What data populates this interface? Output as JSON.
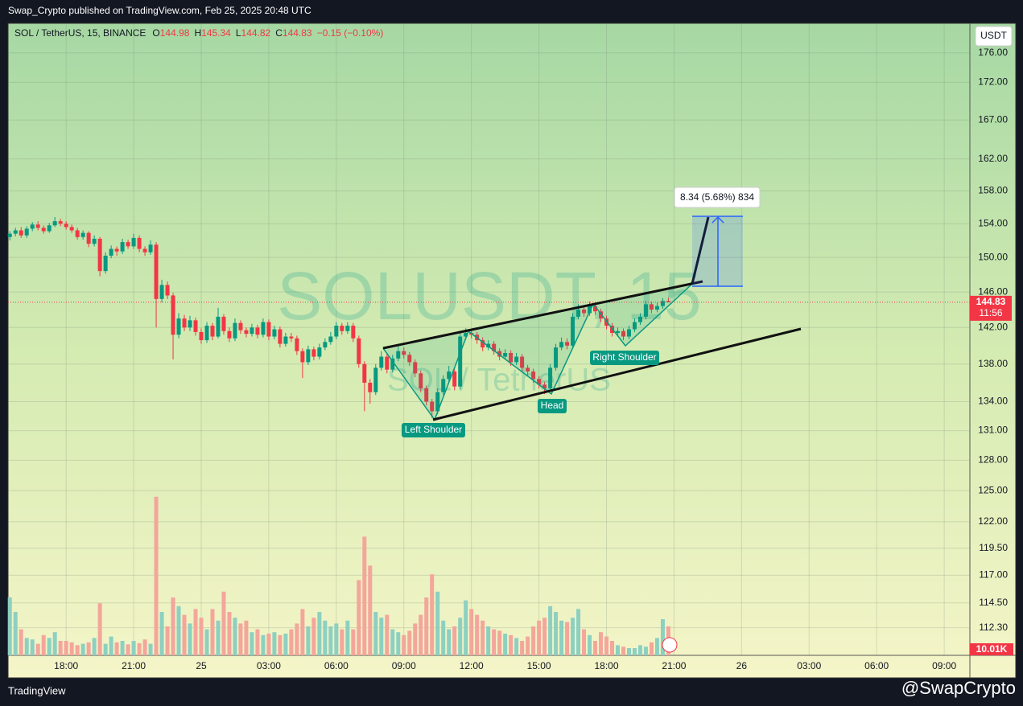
{
  "header": {
    "title": "Swap_Crypto published on TradingView.com, Feb 25, 2025 20:48 UTC"
  },
  "footer": {
    "brand": "TradingView",
    "handle": "@SwapCrypto"
  },
  "chart_data": {
    "type": "candlestick",
    "symbol": "SOL / TetherUS, 15, BINANCE",
    "ohlc_keys": [
      "O",
      "H",
      "L",
      "C"
    ],
    "change": "−0.15 (−0.10%)",
    "currency": "USDT",
    "countdown": "11:56",
    "watermark": {
      "symbol": "SOLUSDT, 15",
      "name": "SOL / TetherUS"
    },
    "annotations": [
      "Left Shoulder",
      "Head",
      "Right Shoulder"
    ],
    "measure": "8.34 (5.68%) 834",
    "log_scale": true,
    "grid": true,
    "up_color": "#089981",
    "down_color": "#f23645",
    "volume_up_color": "#8dd0c1",
    "volume_down_color": "#f4a69b",
    "xlim": [
      15.42,
      58.14
    ],
    "xticks": [
      {
        "value": 18,
        "label": "18:00"
      },
      {
        "value": 21,
        "label": "21:00"
      },
      {
        "value": 24,
        "label": "25"
      },
      {
        "value": 27,
        "label": "03:00"
      },
      {
        "value": 30,
        "label": "06:00"
      },
      {
        "value": 33,
        "label": "09:00"
      },
      {
        "value": 36,
        "label": "12:00"
      },
      {
        "value": 39,
        "label": "15:00"
      },
      {
        "value": 42,
        "label": "18:00"
      },
      {
        "value": 45,
        "label": "21:00"
      },
      {
        "value": 48,
        "label": "26"
      },
      {
        "value": 51,
        "label": "03:00"
      },
      {
        "value": 54,
        "label": "06:00"
      },
      {
        "value": 57,
        "label": "09:00"
      }
    ],
    "ylim": [
      109.9,
      180.0
    ],
    "yticks": [
      {
        "value": 176,
        "label": "176.00"
      },
      {
        "value": 172,
        "label": "172.00"
      },
      {
        "value": 167,
        "label": "167.00"
      },
      {
        "value": 162,
        "label": "162.00"
      },
      {
        "value": 158,
        "label": "158.00"
      },
      {
        "value": 154,
        "label": "154.00"
      },
      {
        "value": 150,
        "label": "150.00"
      },
      {
        "value": 146,
        "label": "146.00"
      },
      {
        "value": 142,
        "label": "142.00"
      },
      {
        "value": 138,
        "label": "138.00"
      },
      {
        "value": 134,
        "label": "134.00"
      },
      {
        "value": 131,
        "label": "131.00"
      },
      {
        "value": 128,
        "label": "128.00"
      },
      {
        "value": 125,
        "label": "125.00"
      },
      {
        "value": 122,
        "label": "122.00"
      },
      {
        "value": 119.5,
        "label": "119.50"
      },
      {
        "value": 117,
        "label": "117.00"
      },
      {
        "value": 114.5,
        "label": "114.50"
      },
      {
        "value": 112.3,
        "label": "112.30"
      }
    ],
    "x": [
      15.5,
      15.75,
      16,
      16.25,
      16.5,
      16.75,
      17,
      17.25,
      17.5,
      17.75,
      18,
      18.25,
      18.5,
      18.75,
      19,
      19.25,
      19.5,
      19.75,
      20,
      20.25,
      20.5,
      20.75,
      21,
      21.25,
      21.5,
      21.75,
      22,
      22.25,
      22.5,
      22.75,
      23,
      23.25,
      23.5,
      23.75,
      24,
      24.25,
      24.5,
      24.75,
      25,
      25.25,
      25.5,
      25.75,
      26,
      26.25,
      26.5,
      26.75,
      27,
      27.25,
      27.5,
      27.75,
      28,
      28.25,
      28.5,
      28.75,
      29,
      29.25,
      29.5,
      29.75,
      30,
      30.25,
      30.5,
      30.75,
      31,
      31.25,
      31.5,
      31.75,
      32,
      32.25,
      32.5,
      32.75,
      33,
      33.25,
      33.5,
      33.75,
      34,
      34.25,
      34.5,
      34.75,
      35,
      35.25,
      35.5,
      35.75,
      36,
      36.25,
      36.5,
      36.75,
      37,
      37.25,
      37.5,
      37.75,
      38,
      38.25,
      38.5,
      38.75,
      39,
      39.25,
      39.5,
      39.75,
      40,
      40.25,
      40.5,
      40.75,
      41,
      41.25,
      41.5,
      41.75,
      42,
      42.25,
      42.5,
      42.75,
      43,
      43.25,
      43.5,
      43.75,
      44,
      44.25,
      44.5,
      44.75
    ],
    "open": [
      152.4,
      152.8,
      153.2,
      152.6,
      153.4,
      153.9,
      153.5,
      153.1,
      153.8,
      154.3,
      154.0,
      153.6,
      153.2,
      152.4,
      152.9,
      151.6,
      152.2,
      148.4,
      150.2,
      151.0,
      150.7,
      151.8,
      151.3,
      152.3,
      151.0,
      150.6,
      151.5,
      145.2,
      146.8,
      145.6,
      141.2,
      143.0,
      142.0,
      142.8,
      141.5,
      140.6,
      142.2,
      141.0,
      143.2,
      141.6,
      140.8,
      142.5,
      141.7,
      141.3,
      142.0,
      141.2,
      142.6,
      141.0,
      141.8,
      140.2,
      141.0,
      140.8,
      139.4,
      138.2,
      139.6,
      138.8,
      139.8,
      140.4,
      141.0,
      142.2,
      141.6,
      142.2,
      140.8,
      138.0,
      136.0,
      135.0,
      137.6,
      138.8,
      137.4,
      138.6,
      139.4,
      139.0,
      138.2,
      137.0,
      135.4,
      134.0,
      133.0,
      135.0,
      136.4,
      137.2,
      135.6,
      141.0,
      141.4,
      141.2,
      140.6,
      139.8,
      140.2,
      139.4,
      138.8,
      139.2,
      138.2,
      138.8,
      137.6,
      137.2,
      136.4,
      135.8,
      135.4,
      137.6,
      139.8,
      140.4,
      140.0,
      143.2,
      144.0,
      143.6,
      144.4,
      143.8,
      143.0,
      142.2,
      141.4,
      141.6,
      141.0,
      141.8,
      142.6,
      143.2,
      144.6,
      144.0,
      144.4,
      144.98
    ],
    "high": [
      153.1,
      153.5,
      153.6,
      153.7,
      154.2,
      154.3,
      153.8,
      154.1,
      154.8,
      154.6,
      154.3,
      153.9,
      153.5,
      153.2,
      153.1,
      152.6,
      152.4,
      150.6,
      151.4,
      151.3,
      152.2,
      152.1,
      152.8,
      152.6,
      151.3,
      152.0,
      151.8,
      147.4,
      147.2,
      145.9,
      143.6,
      143.4,
      143.3,
      143.1,
      141.9,
      142.6,
      142.5,
      144.2,
      143.5,
      142.0,
      143.0,
      142.8,
      142.0,
      142.4,
      142.3,
      143.0,
      142.9,
      142.2,
      142.1,
      141.4,
      141.4,
      141.1,
      139.7,
      140.0,
      139.9,
      140.2,
      140.8,
      141.5,
      142.6,
      142.5,
      142.6,
      142.5,
      141.1,
      138.3,
      136.4,
      138.0,
      139.4,
      139.1,
      139.0,
      139.9,
      139.8,
      139.3,
      138.5,
      137.3,
      135.7,
      134.3,
      135.4,
      136.8,
      137.8,
      137.5,
      141.4,
      141.9,
      141.7,
      141.5,
      140.9,
      140.6,
      140.5,
      139.7,
      139.6,
      139.5,
      139.2,
      139.1,
      137.9,
      137.5,
      136.7,
      136.1,
      138.0,
      140.2,
      140.9,
      140.8,
      143.6,
      144.6,
      144.4,
      144.9,
      144.7,
      144.1,
      143.3,
      142.5,
      142.0,
      141.9,
      142.2,
      143.0,
      143.6,
      145.0,
      144.9,
      144.8,
      145.3,
      145.34
    ],
    "low": [
      152.0,
      152.5,
      152.3,
      152.3,
      153.1,
      153.2,
      152.8,
      152.9,
      153.6,
      153.7,
      153.3,
      152.9,
      152.1,
      152.1,
      151.2,
      151.3,
      147.8,
      148.1,
      149.9,
      150.2,
      150.4,
      151.0,
      151.0,
      150.6,
      150.2,
      150.3,
      142.0,
      144.8,
      145.2,
      138.5,
      140.8,
      141.6,
      141.6,
      141.1,
      140.2,
      140.3,
      140.6,
      140.8,
      141.2,
      140.4,
      140.5,
      141.3,
      140.9,
      141.0,
      140.8,
      140.9,
      140.6,
      140.7,
      139.8,
      139.9,
      140.4,
      139.0,
      136.5,
      137.9,
      138.4,
      138.5,
      139.5,
      140.1,
      140.7,
      141.2,
      141.3,
      140.4,
      137.6,
      133.0,
      133.8,
      134.7,
      137.3,
      137.0,
      137.1,
      138.3,
      138.6,
      137.8,
      136.6,
      135.0,
      133.6,
      132.3,
      132.7,
      134.7,
      136.1,
      135.2,
      135.3,
      140.7,
      140.8,
      140.2,
      139.4,
      139.5,
      139.0,
      138.4,
      138.5,
      137.8,
      137.9,
      137.2,
      136.8,
      136.0,
      135.4,
      134.8,
      135.1,
      137.3,
      139.5,
      139.6,
      139.7,
      142.9,
      143.2,
      143.3,
      143.4,
      142.6,
      141.8,
      141.0,
      141.1,
      140.6,
      140.7,
      141.5,
      142.3,
      142.9,
      143.6,
      143.7,
      144.1,
      144.82
    ],
    "close": [
      152.8,
      153.2,
      152.6,
      153.4,
      153.9,
      153.5,
      153.1,
      153.8,
      154.3,
      154.0,
      153.6,
      153.2,
      152.4,
      152.9,
      151.6,
      152.2,
      148.4,
      150.2,
      151.0,
      150.7,
      151.8,
      151.3,
      152.3,
      151.0,
      150.6,
      151.5,
      145.2,
      146.8,
      145.6,
      141.2,
      143.0,
      142.0,
      142.8,
      141.5,
      140.6,
      142.2,
      141.0,
      143.2,
      141.6,
      140.8,
      142.5,
      141.7,
      141.3,
      142.0,
      141.2,
      142.6,
      141.0,
      141.8,
      140.2,
      141.0,
      140.8,
      139.4,
      138.2,
      139.6,
      138.8,
      139.8,
      140.4,
      141.0,
      142.2,
      141.6,
      142.2,
      140.8,
      138.0,
      136.0,
      135.0,
      137.6,
      138.8,
      137.4,
      138.6,
      139.4,
      139.0,
      138.2,
      137.0,
      135.4,
      134.0,
      133.0,
      135.0,
      136.4,
      137.2,
      135.6,
      141.0,
      141.4,
      141.2,
      140.6,
      139.8,
      140.2,
      139.4,
      138.8,
      139.2,
      138.2,
      138.8,
      137.6,
      137.2,
      136.4,
      135.8,
      135.4,
      137.6,
      139.8,
      140.4,
      140.0,
      143.2,
      144.0,
      143.6,
      144.4,
      143.8,
      143.0,
      142.2,
      141.4,
      141.6,
      141.0,
      141.8,
      142.6,
      143.2,
      144.6,
      144.0,
      144.4,
      144.98,
      144.83
    ],
    "volume": {
      "values": [
        20000,
        15000,
        9000,
        6000,
        5500,
        4000,
        7000,
        6000,
        8000,
        5000,
        5000,
        4500,
        3500,
        4000,
        4500,
        6000,
        18000,
        4000,
        6500,
        4500,
        5000,
        3800,
        5000,
        4200,
        5500,
        4000,
        54800,
        15000,
        10000,
        20000,
        17000,
        14000,
        11000,
        16000,
        13000,
        9000,
        16000,
        12000,
        22000,
        15000,
        13000,
        11000,
        12000,
        8000,
        9000,
        7000,
        7500,
        8000,
        7000,
        7500,
        9000,
        11000,
        16000,
        10000,
        13000,
        15000,
        12000,
        10000,
        11000,
        9000,
        12000,
        9000,
        26000,
        41000,
        31000,
        15000,
        13000,
        14000,
        9000,
        8000,
        7000,
        8500,
        11000,
        14000,
        20000,
        28000,
        22000,
        12000,
        9000,
        10000,
        13000,
        19000,
        16000,
        14000,
        12000,
        10000,
        9000,
        8500,
        7500,
        7000,
        6000,
        5000,
        6500,
        10000,
        12000,
        13000,
        17000,
        15000,
        12000,
        11500,
        13000,
        16000,
        9000,
        7000,
        5000,
        8000,
        6500,
        5000,
        3500,
        3000,
        2500,
        2500,
        3500,
        3000,
        4500,
        6000,
        12500,
        10010
      ],
      "last_label": "10.01K"
    }
  }
}
